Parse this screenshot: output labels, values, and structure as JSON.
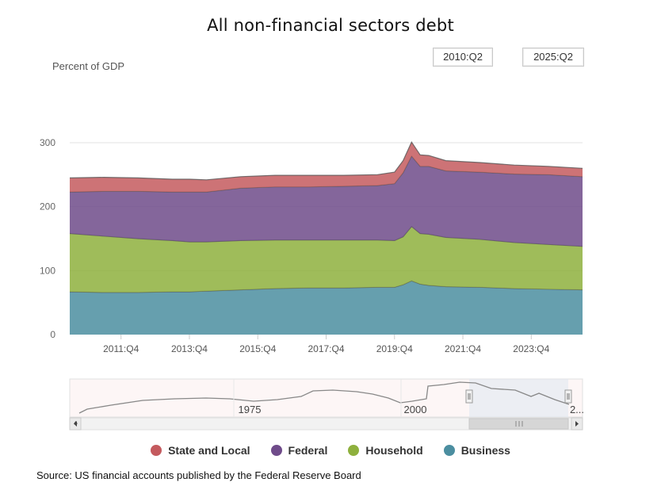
{
  "title": "All non-financial sectors debt",
  "range": {
    "from": "2010:Q2",
    "to": "2025:Q2"
  },
  "legend": [
    {
      "name": "State and Local",
      "color": "#c45a5e"
    },
    {
      "name": "Federal",
      "color": "#6f4b8a"
    },
    {
      "name": "Household",
      "color": "#8eb03d"
    },
    {
      "name": "Business",
      "color": "#4b8ea0"
    }
  ],
  "source": "Source: US financial accounts published by the Federal Reserve Board",
  "chart_data": {
    "type": "area",
    "stacked": true,
    "ylabel": "Percent of GDP",
    "ylim": [
      0,
      300
    ],
    "yticks": [
      0,
      100,
      200,
      300
    ],
    "x_start": "2010:Q2",
    "x_end": "2025:Q2",
    "xtick_labels": [
      "2011:Q4",
      "2013:Q4",
      "2015:Q4",
      "2017:Q4",
      "2019:Q4",
      "2021:Q4",
      "2023:Q4"
    ],
    "x": [
      "2010:Q2",
      "2011:Q2",
      "2012:Q2",
      "2013:Q2",
      "2013:Q4",
      "2014:Q2",
      "2015:Q2",
      "2016:Q2",
      "2017:Q2",
      "2018:Q2",
      "2019:Q2",
      "2019:Q4",
      "2020:Q1",
      "2020:Q2",
      "2020:Q3",
      "2020:Q4",
      "2021:Q2",
      "2022:Q2",
      "2023:Q2",
      "2024:Q2",
      "2025:Q2"
    ],
    "series": [
      {
        "name": "Business",
        "values": [
          67,
          66,
          66,
          67,
          67,
          68,
          70,
          72,
          73,
          73,
          74,
          74,
          78,
          84,
          79,
          77,
          75,
          74,
          72,
          71,
          70
        ]
      },
      {
        "name": "Household",
        "values": [
          91,
          88,
          84,
          80,
          78,
          77,
          77,
          76,
          75,
          75,
          74,
          73,
          75,
          85,
          79,
          80,
          77,
          75,
          72,
          70,
          68
        ]
      },
      {
        "name": "Federal",
        "values": [
          65,
          70,
          74,
          76,
          78,
          78,
          82,
          83,
          83,
          84,
          85,
          89,
          100,
          110,
          105,
          106,
          104,
          105,
          107,
          109,
          109
        ]
      },
      {
        "name": "State and Local",
        "values": [
          22,
          22,
          21,
          20,
          20,
          19,
          18,
          18,
          18,
          17,
          17,
          18,
          19,
          22,
          18,
          17,
          16,
          15,
          14,
          13,
          13
        ]
      }
    ],
    "navigator": {
      "labels": [
        "1975",
        "2000",
        "2..."
      ]
    },
    "grid": true,
    "legend_position": "bottom"
  }
}
